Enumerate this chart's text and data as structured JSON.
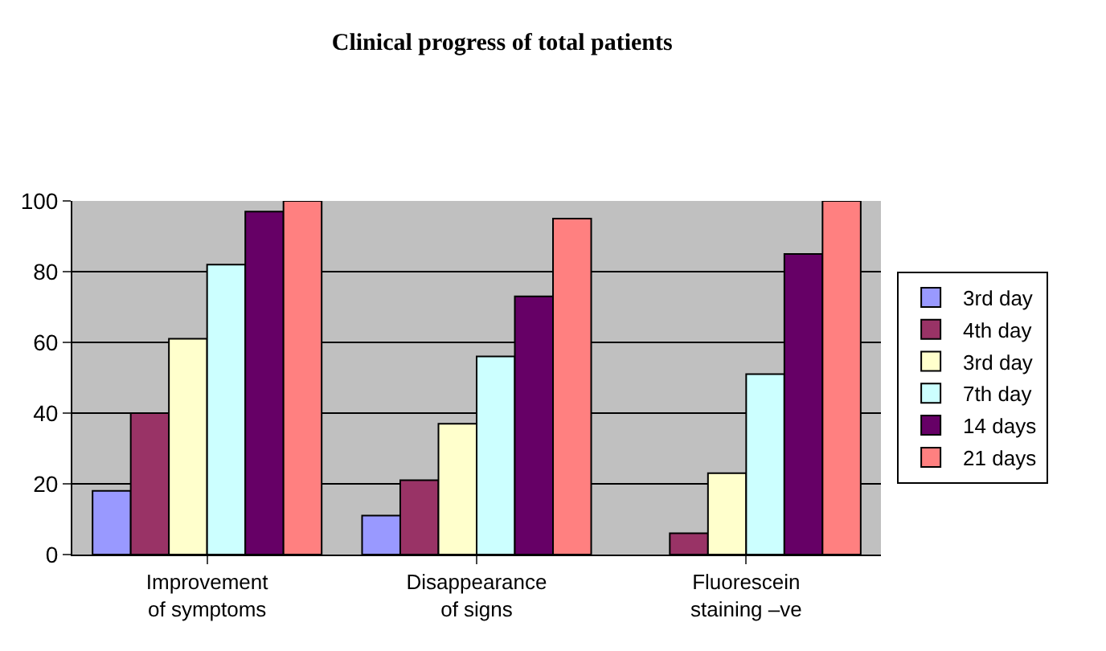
{
  "chart_data": {
    "type": "bar",
    "title": "Clinical progress of total patients",
    "categories": [
      "Improvement\nof symptoms",
      "Disappearance\nof signs",
      "Fluorescein\nstaining –ve"
    ],
    "series": [
      {
        "name": "3rd day",
        "color": "#9999ff",
        "values": [
          18,
          11,
          0
        ]
      },
      {
        "name": "4th day",
        "color": "#993366",
        "values": [
          40,
          21,
          6
        ]
      },
      {
        "name": "3rd day",
        "color": "#ffffcc",
        "values": [
          61,
          37,
          23
        ]
      },
      {
        "name": "7th day",
        "color": "#ccffff",
        "values": [
          82,
          56,
          51
        ]
      },
      {
        "name": "14 days",
        "color": "#660066",
        "values": [
          97,
          73,
          85
        ]
      },
      {
        "name": "21 days",
        "color": "#ff8080",
        "values": [
          100,
          95,
          100
        ]
      }
    ],
    "ylim": [
      0,
      100
    ],
    "yticks": [
      0,
      20,
      40,
      60,
      80,
      100
    ],
    "grid": "y",
    "legend": "right"
  }
}
